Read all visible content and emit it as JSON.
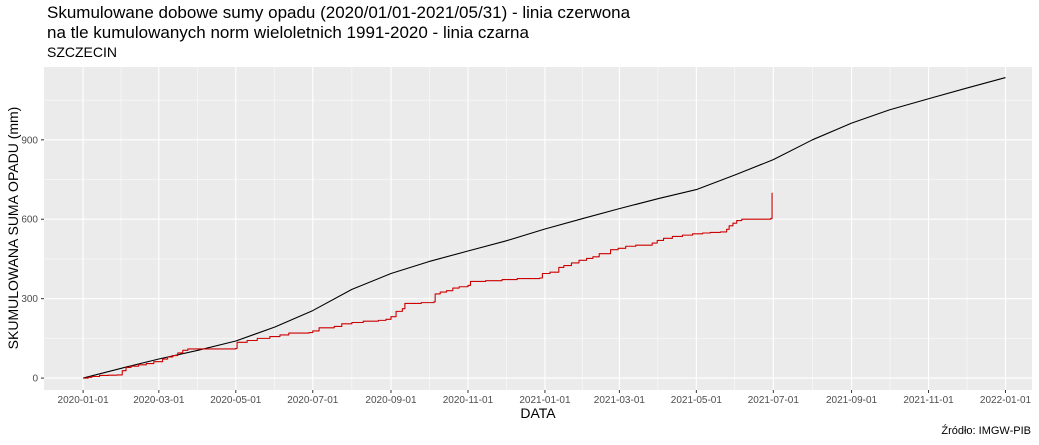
{
  "chart_data": {
    "type": "line",
    "title_line1": "Skumulowane dobowe sumy opadu (2020/01/01-2021/05/31) - linia czerwona",
    "title_line2": "na tle kumulowanych norm wieloletnich 1991-2020 - linia czarna",
    "subtitle": "SZCZECIN",
    "xlabel": "DATA",
    "ylabel": "SKUMULOWANA SUMA OPADU (mm)",
    "caption": "Źródło: IMGW-PIB",
    "xlim": [
      "2019-12-01",
      "2022-01-22"
    ],
    "ylim": [
      -45,
      1175
    ],
    "x_ticks": [
      "2020-01-01",
      "2020-03-01",
      "2020-05-01",
      "2020-07-01",
      "2020-09-01",
      "2020-11-01",
      "2021-01-01",
      "2021-03-01",
      "2021-05-01",
      "2021-07-01",
      "2021-09-01",
      "2021-11-01",
      "2022-01-01"
    ],
    "y_ticks": [
      0,
      300,
      600,
      900
    ],
    "grid": true,
    "series": [
      {
        "name": "",
        "color": "#cc0000",
        "step": true,
        "points": [
          [
            "2020-01-01",
            0
          ],
          [
            "2020-01-05",
            3
          ],
          [
            "2020-01-08",
            6
          ],
          [
            "2020-01-14",
            10
          ],
          [
            "2020-01-21",
            11
          ],
          [
            "2020-01-28",
            12
          ],
          [
            "2020-02-01",
            28
          ],
          [
            "2020-02-04",
            40
          ],
          [
            "2020-02-08",
            45
          ],
          [
            "2020-02-14",
            50
          ],
          [
            "2020-02-20",
            55
          ],
          [
            "2020-02-26",
            62
          ],
          [
            "2020-03-04",
            72
          ],
          [
            "2020-03-08",
            80
          ],
          [
            "2020-03-12",
            85
          ],
          [
            "2020-03-16",
            95
          ],
          [
            "2020-03-20",
            105
          ],
          [
            "2020-03-24",
            110
          ],
          [
            "2020-05-01",
            112
          ],
          [
            "2020-05-02",
            135
          ],
          [
            "2020-05-10",
            142
          ],
          [
            "2020-05-18",
            150
          ],
          [
            "2020-05-28",
            157
          ],
          [
            "2020-06-05",
            163
          ],
          [
            "2020-06-12",
            170
          ],
          [
            "2020-06-28",
            172
          ],
          [
            "2020-07-01",
            178
          ],
          [
            "2020-07-06",
            190
          ],
          [
            "2020-07-18",
            195
          ],
          [
            "2020-07-24",
            205
          ],
          [
            "2020-08-01",
            210
          ],
          [
            "2020-08-10",
            215
          ],
          [
            "2020-08-22",
            218
          ],
          [
            "2020-08-28",
            222
          ],
          [
            "2020-09-01",
            232
          ],
          [
            "2020-09-05",
            252
          ],
          [
            "2020-09-10",
            262
          ],
          [
            "2020-09-12",
            282
          ],
          [
            "2020-09-25",
            285
          ],
          [
            "2020-10-05",
            288
          ],
          [
            "2020-10-06",
            318
          ],
          [
            "2020-10-10",
            325
          ],
          [
            "2020-10-15",
            330
          ],
          [
            "2020-10-20",
            340
          ],
          [
            "2020-10-25",
            345
          ],
          [
            "2020-11-01",
            350
          ],
          [
            "2020-11-03",
            365
          ],
          [
            "2020-11-15",
            368
          ],
          [
            "2020-11-28",
            372
          ],
          [
            "2020-12-10",
            376
          ],
          [
            "2020-12-28",
            378
          ],
          [
            "2020-12-30",
            395
          ],
          [
            "2021-01-05",
            400
          ],
          [
            "2021-01-12",
            418
          ],
          [
            "2021-01-16",
            425
          ],
          [
            "2021-01-22",
            435
          ],
          [
            "2021-01-28",
            445
          ],
          [
            "2021-02-03",
            452
          ],
          [
            "2021-02-08",
            458
          ],
          [
            "2021-02-13",
            470
          ],
          [
            "2021-02-22",
            485
          ],
          [
            "2021-02-28",
            490
          ],
          [
            "2021-03-06",
            498
          ],
          [
            "2021-03-14",
            502
          ],
          [
            "2021-03-27",
            510
          ],
          [
            "2021-03-31",
            520
          ],
          [
            "2021-04-05",
            528
          ],
          [
            "2021-04-12",
            535
          ],
          [
            "2021-04-20",
            540
          ],
          [
            "2021-04-28",
            545
          ],
          [
            "2021-05-06",
            548
          ],
          [
            "2021-05-12",
            550
          ],
          [
            "2021-05-20",
            552
          ],
          [
            "2021-05-25",
            562
          ],
          [
            "2021-05-27",
            575
          ],
          [
            "2021-05-30",
            585
          ],
          [
            "2021-06-02",
            595
          ],
          [
            "2021-06-06",
            600
          ],
          [
            "2021-06-29",
            603
          ],
          [
            "2021-06-30",
            700
          ]
        ]
      },
      {
        "name": "",
        "color": "#000000",
        "step": false,
        "points": [
          [
            "2020-01-01",
            0
          ],
          [
            "2020-02-01",
            38
          ],
          [
            "2020-03-01",
            72
          ],
          [
            "2020-04-01",
            105
          ],
          [
            "2020-05-01",
            140
          ],
          [
            "2020-06-01",
            193
          ],
          [
            "2020-07-01",
            255
          ],
          [
            "2020-08-01",
            335
          ],
          [
            "2020-09-01",
            395
          ],
          [
            "2020-10-01",
            440
          ],
          [
            "2020-11-01",
            480
          ],
          [
            "2020-12-01",
            518
          ],
          [
            "2021-01-01",
            563
          ],
          [
            "2021-02-01",
            604
          ],
          [
            "2021-03-01",
            640
          ],
          [
            "2021-04-01",
            678
          ],
          [
            "2021-05-01",
            712
          ],
          [
            "2021-06-01",
            768
          ],
          [
            "2021-07-01",
            825
          ],
          [
            "2021-08-01",
            900
          ],
          [
            "2021-09-01",
            963
          ],
          [
            "2021-10-01",
            1013
          ],
          [
            "2021-11-01",
            1055
          ],
          [
            "2021-12-01",
            1095
          ],
          [
            "2022-01-01",
            1135
          ]
        ]
      }
    ]
  }
}
